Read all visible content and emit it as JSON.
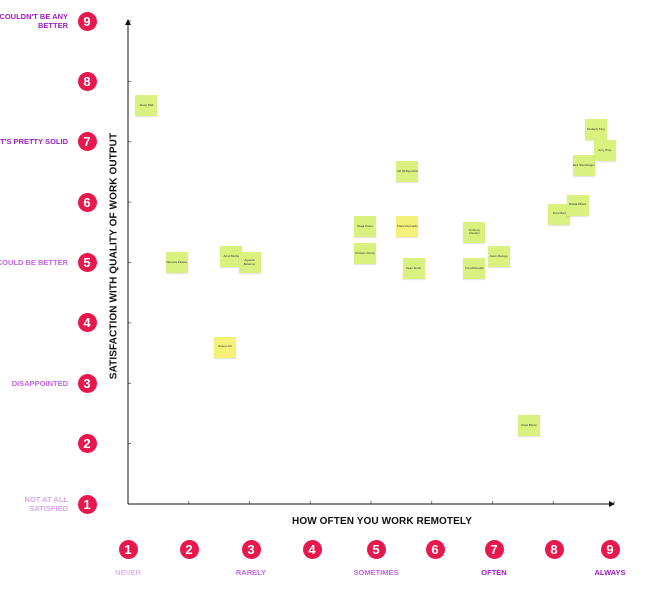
{
  "axes": {
    "x_title": "HOW OFTEN YOU WORK REMOTELY",
    "y_title": "SATISFACTION WITH QUALITY OF WORK OUTPUT"
  },
  "colors": {
    "badge": "#e8184f",
    "note_green": "#d9f17f",
    "note_yellow": "#f5f07a",
    "label_light": "#d8a6ec",
    "label_mid": "#c368e0",
    "label_dark": "#9c1fc4"
  },
  "y_scale": [
    {
      "num": "1",
      "label": "NOT AT ALL SATISFIED",
      "color": "#d8a6ec"
    },
    {
      "num": "2",
      "label": "",
      "color": "#d8a6ec"
    },
    {
      "num": "3",
      "label": "DISAPPOINTED",
      "color": "#c368e0"
    },
    {
      "num": "4",
      "label": "",
      "color": "#c368e0"
    },
    {
      "num": "5",
      "label": "COULD BE BETTER",
      "color": "#c368e0"
    },
    {
      "num": "6",
      "label": "",
      "color": "#c368e0"
    },
    {
      "num": "7",
      "label": "IT'S PRETTY SOLID",
      "color": "#9c1fc4"
    },
    {
      "num": "8",
      "label": "",
      "color": "#9c1fc4"
    },
    {
      "num": "9",
      "label": "COULDN'T BE ANY BETTER",
      "color": "#9c1fc4"
    }
  ],
  "x_scale": [
    {
      "num": "1",
      "label": "NEVER",
      "color": "#e0b8f0"
    },
    {
      "num": "2",
      "label": "",
      "color": "#e0b8f0"
    },
    {
      "num": "3",
      "label": "RARELY",
      "color": "#c368e0"
    },
    {
      "num": "4",
      "label": "",
      "color": "#c368e0"
    },
    {
      "num": "5",
      "label": "SOMETIMES",
      "color": "#c368e0"
    },
    {
      "num": "6",
      "label": "",
      "color": "#c368e0"
    },
    {
      "num": "7",
      "label": "OFTEN",
      "color": "#9c1fc4"
    },
    {
      "num": "8",
      "label": "",
      "color": "#9c1fc4"
    },
    {
      "num": "9",
      "label": "ALWAYS",
      "color": "#9c1fc4"
    }
  ],
  "chart_data": {
    "type": "scatter",
    "xlabel": "HOW OFTEN YOU WORK REMOTELY",
    "ylabel": "SATISFACTION WITH QUALITY OF WORK OUTPUT",
    "xlim": [
      1,
      9
    ],
    "ylim": [
      1,
      9
    ],
    "points": [
      {
        "name": "Jason Wali",
        "x": 1.3,
        "y": 7.6,
        "color": "green"
      },
      {
        "name": "Vanessa Ziewes",
        "x": 1.8,
        "y": 5.0,
        "color": "green"
      },
      {
        "name": "Arnol Mehta",
        "x": 2.7,
        "y": 5.1,
        "color": "green"
      },
      {
        "name": "Agueda Betancur",
        "x": 3.0,
        "y": 5.0,
        "color": "green"
      },
      {
        "name": "Rasmo KC",
        "x": 2.6,
        "y": 3.6,
        "color": "yellow"
      },
      {
        "name": "Mega Potter",
        "x": 4.9,
        "y": 5.6,
        "color": "green"
      },
      {
        "name": "Christen Penny",
        "x": 4.9,
        "y": 5.15,
        "color": "green"
      },
      {
        "name": "Sid McReynolds",
        "x": 5.6,
        "y": 6.5,
        "color": "green"
      },
      {
        "name": "Frane Deccardo",
        "x": 5.6,
        "y": 5.6,
        "color": "yellow"
      },
      {
        "name": "Sean Smith",
        "x": 5.7,
        "y": 4.9,
        "color": "green"
      },
      {
        "name": "Kimberly Chudeni",
        "x": 6.7,
        "y": 5.5,
        "color": "green"
      },
      {
        "name": "Tob McDonald",
        "x": 6.7,
        "y": 4.9,
        "color": "green"
      },
      {
        "name": "Jason Ramgo",
        "x": 7.1,
        "y": 5.1,
        "color": "green"
      },
      {
        "name": "Jared Bloom",
        "x": 7.6,
        "y": 2.3,
        "color": "green"
      },
      {
        "name": "Doris Barr",
        "x": 8.1,
        "y": 5.8,
        "color": "green"
      },
      {
        "name": "Michal Wlator",
        "x": 8.4,
        "y": 5.95,
        "color": "green"
      },
      {
        "name": "Dick Shudobagal",
        "x": 8.5,
        "y": 6.6,
        "color": "green"
      },
      {
        "name": "Kimberly King",
        "x": 8.7,
        "y": 7.2,
        "color": "green"
      },
      {
        "name": "Jerry Price",
        "x": 8.85,
        "y": 6.85,
        "color": "green"
      }
    ]
  }
}
